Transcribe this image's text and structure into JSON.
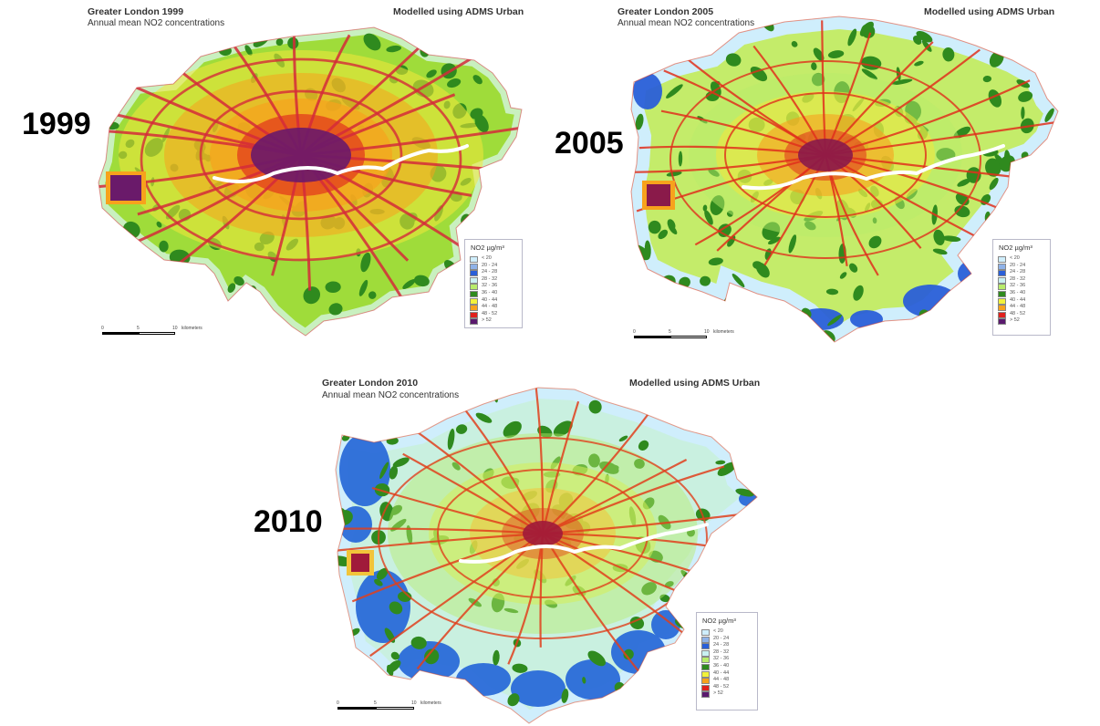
{
  "maps": [
    {
      "title": "Greater London 1999",
      "subtitle": "Annual mean NO2 concentrations",
      "model_note": "Modelled using ADMS Urban",
      "year_label": "1999",
      "legend_title": "NO2  µg/m³",
      "legend": [
        {
          "label": "< 20",
          "color": "#cfeefc"
        },
        {
          "label": "20 - 24",
          "color": "#8fb2e8"
        },
        {
          "label": "24 - 28",
          "color": "#2a5fd8"
        },
        {
          "label": "28 - 32",
          "color": "#c9f0f2"
        },
        {
          "label": "32 - 36",
          "color": "#b8ec6a"
        },
        {
          "label": "36 - 40",
          "color": "#2f8a1e"
        },
        {
          "label": "40 - 44",
          "color": "#f2f23a"
        },
        {
          "label": "44 - 48",
          "color": "#f7a21c"
        },
        {
          "label": "48 - 52",
          "color": "#e0201c"
        },
        {
          "label": "> 52",
          "color": "#5a1a6e"
        }
      ],
      "scale_ticks": [
        "0",
        "5",
        "10",
        "kilometers"
      ]
    },
    {
      "title": "Greater London 2005",
      "subtitle": "Annual mean NO2 concentrations",
      "model_note": "Modelled using ADMS Urban",
      "year_label": "2005",
      "legend_title": "NO2  µg/m³",
      "legend": [
        {
          "label": "< 20",
          "color": "#cfeefc"
        },
        {
          "label": "20 - 24",
          "color": "#8fb2e8"
        },
        {
          "label": "24 - 28",
          "color": "#2a5fd8"
        },
        {
          "label": "28 - 32",
          "color": "#c9f0f2"
        },
        {
          "label": "32 - 36",
          "color": "#b8ec6a"
        },
        {
          "label": "36 - 40",
          "color": "#2f8a1e"
        },
        {
          "label": "40 - 44",
          "color": "#f2f23a"
        },
        {
          "label": "44 - 48",
          "color": "#f7a21c"
        },
        {
          "label": "48 - 52",
          "color": "#e0201c"
        },
        {
          "label": "> 52",
          "color": "#5a1a6e"
        }
      ],
      "scale_ticks": [
        "0",
        "5",
        "10",
        "kilometers"
      ]
    },
    {
      "title": "Greater London 2010",
      "subtitle": "Annual mean NO2 concentrations",
      "model_note": "Modelled using ADMS Urban",
      "year_label": "2010",
      "legend_title": "NO2  µg/m³",
      "legend": [
        {
          "label": "< 20",
          "color": "#cfeefc"
        },
        {
          "label": "20 - 24",
          "color": "#8fb2e8"
        },
        {
          "label": "24 - 28",
          "color": "#2a5fd8"
        },
        {
          "label": "28 - 32",
          "color": "#c9f0f2"
        },
        {
          "label": "32 - 36",
          "color": "#b8ec6a"
        },
        {
          "label": "36 - 40",
          "color": "#2f8a1e"
        },
        {
          "label": "40 - 44",
          "color": "#f2f23a"
        },
        {
          "label": "44 - 48",
          "color": "#f7a21c"
        },
        {
          "label": "48 - 52",
          "color": "#e0201c"
        },
        {
          "label": "> 52",
          "color": "#5a1a6e"
        }
      ],
      "scale_ticks": [
        "0",
        "5",
        "10",
        "kilometers"
      ]
    }
  ],
  "colors": {
    "map_1999": {
      "base": "#9fdc3a",
      "edge": "#c9f0bf",
      "green": "#2f8a1e",
      "mid": "#f2e83a",
      "orange": "#f7a21c",
      "road": "#d42a3a",
      "core": "#6a1a6a",
      "river": "#ffffff"
    },
    "map_2005": {
      "base": "#c4ec6a",
      "edge": "#cfeefc",
      "green": "#2f8a1e",
      "mid": "#f2e83a",
      "orange": "#f7a21c",
      "road": "#e0301c",
      "core": "#8a1a4a",
      "river": "#ffffff",
      "blue": "#2a5fd8"
    },
    "map_2010": {
      "base": "#c9f0e0",
      "edge": "#cfeefc",
      "green": "#2f8a1e",
      "mid": "#d6ee5a",
      "orange": "#f2c43a",
      "road": "#e0401c",
      "core": "#a01a3a",
      "river": "#ffffff",
      "blue": "#2a6ad8"
    }
  }
}
